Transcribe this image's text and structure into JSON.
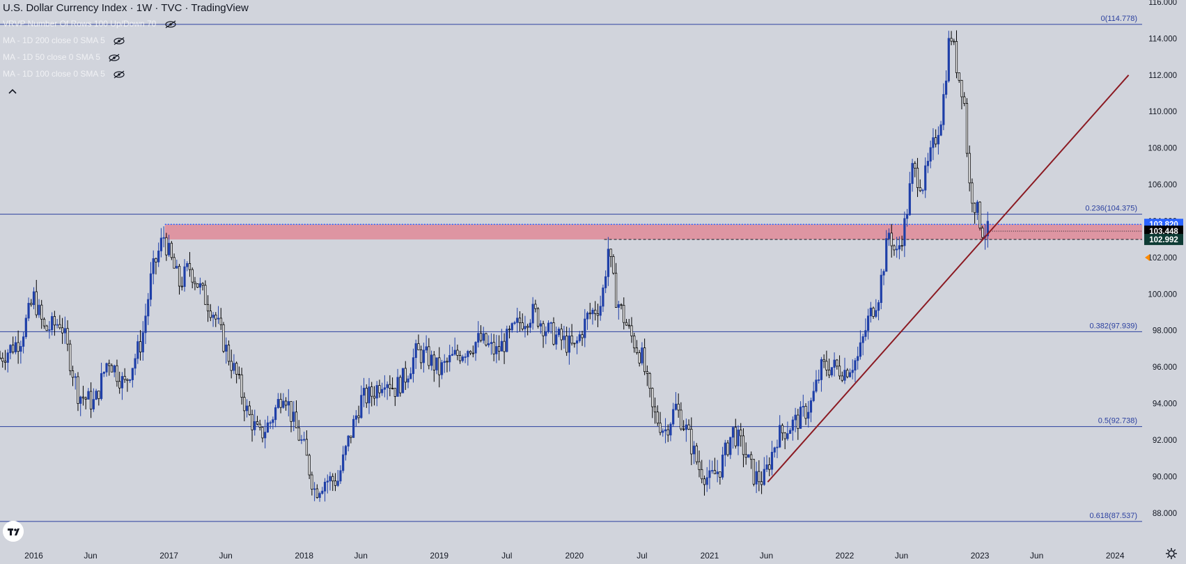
{
  "title": "U.S. Dollar Currency Index · 1W · TVC · TradingView",
  "indicators": [
    {
      "label": "VRVP Number Of Rows 100 Up/Down 70"
    },
    {
      "label": "MA - 1D 200 close 0 SMA 5"
    },
    {
      "label": "MA - 1D 50 close 0 SMA 5"
    },
    {
      "label": "MA - 1D 100 close 0 SMA 5"
    }
  ],
  "chart_data": {
    "type": "candlestick",
    "title": "U.S. Dollar Currency Index · 1W · TVC · TradingView",
    "xlabel": "",
    "ylabel": "",
    "ylim": [
      87.0,
      116.0
    ],
    "xlim": [
      2015.75,
      2024.2
    ],
    "grid": false,
    "y_ticks": [
      "88.000",
      "90.000",
      "92.000",
      "94.000",
      "96.000",
      "98.000",
      "100.000",
      "102.000",
      "104.000",
      "106.000",
      "108.000",
      "110.000",
      "112.000",
      "114.000",
      "116.000"
    ],
    "x_ticks": [
      {
        "label": "2016",
        "t": 2016.0
      },
      {
        "label": "Jun",
        "t": 2016.42
      },
      {
        "label": "2017",
        "t": 2017.0
      },
      {
        "label": "Jun",
        "t": 2017.42
      },
      {
        "label": "2018",
        "t": 2018.0
      },
      {
        "label": "Jun",
        "t": 2018.42
      },
      {
        "label": "2019",
        "t": 2019.0
      },
      {
        "label": "Jul",
        "t": 2019.5
      },
      {
        "label": "2020",
        "t": 2020.0
      },
      {
        "label": "Jul",
        "t": 2020.5
      },
      {
        "label": "2021",
        "t": 2021.0
      },
      {
        "label": "Jun",
        "t": 2021.42
      },
      {
        "label": "2022",
        "t": 2022.0
      },
      {
        "label": "Jun",
        "t": 2022.42
      },
      {
        "label": "2023",
        "t": 2023.0
      },
      {
        "label": "Jun",
        "t": 2023.42
      },
      {
        "label": "2024",
        "t": 2024.0
      }
    ],
    "price_keypoints": [
      [
        2015.75,
        96.5
      ],
      [
        2015.9,
        97.5
      ],
      [
        2016.0,
        99.8
      ],
      [
        2016.08,
        98.0
      ],
      [
        2016.2,
        98.5
      ],
      [
        2016.33,
        94.5
      ],
      [
        2016.45,
        94.0
      ],
      [
        2016.55,
        96.5
      ],
      [
        2016.67,
        95.0
      ],
      [
        2016.8,
        97.5
      ],
      [
        2016.87,
        101.0
      ],
      [
        2016.96,
        103.2
      ],
      [
        2017.0,
        102.2
      ],
      [
        2017.08,
        100.5
      ],
      [
        2017.15,
        101.5
      ],
      [
        2017.25,
        100.0
      ],
      [
        2017.33,
        99.0
      ],
      [
        2017.42,
        97.0
      ],
      [
        2017.5,
        95.5
      ],
      [
        2017.58,
        93.5
      ],
      [
        2017.67,
        92.2
      ],
      [
        2017.75,
        93.0
      ],
      [
        2017.85,
        94.8
      ],
      [
        2017.92,
        93.0
      ],
      [
        2018.0,
        91.5
      ],
      [
        2018.08,
        89.2
      ],
      [
        2018.15,
        89.8
      ],
      [
        2018.25,
        89.8
      ],
      [
        2018.33,
        92.0
      ],
      [
        2018.42,
        94.2
      ],
      [
        2018.5,
        94.5
      ],
      [
        2018.6,
        95.5
      ],
      [
        2018.67,
        94.8
      ],
      [
        2018.75,
        95.5
      ],
      [
        2018.83,
        96.8
      ],
      [
        2018.92,
        96.5
      ],
      [
        2019.0,
        95.8
      ],
      [
        2019.1,
        96.5
      ],
      [
        2019.2,
        97.0
      ],
      [
        2019.3,
        97.5
      ],
      [
        2019.42,
        96.8
      ],
      [
        2019.5,
        97.5
      ],
      [
        2019.6,
        98.5
      ],
      [
        2019.7,
        99.0
      ],
      [
        2019.8,
        98.0
      ],
      [
        2019.9,
        97.5
      ],
      [
        2020.0,
        97.0
      ],
      [
        2020.1,
        98.8
      ],
      [
        2020.2,
        99.5
      ],
      [
        2020.25,
        102.5
      ],
      [
        2020.3,
        100.0
      ],
      [
        2020.4,
        98.0
      ],
      [
        2020.5,
        96.5
      ],
      [
        2020.58,
        93.5
      ],
      [
        2020.67,
        92.5
      ],
      [
        2020.75,
        93.8
      ],
      [
        2020.83,
        92.5
      ],
      [
        2020.92,
        90.5
      ],
      [
        2021.0,
        89.8
      ],
      [
        2021.08,
        90.5
      ],
      [
        2021.17,
        92.5
      ],
      [
        2021.25,
        91.5
      ],
      [
        2021.33,
        90.0
      ],
      [
        2021.4,
        89.8
      ],
      [
        2021.5,
        92.2
      ],
      [
        2021.6,
        92.8
      ],
      [
        2021.67,
        93.2
      ],
      [
        2021.75,
        94.0
      ],
      [
        2021.83,
        96.0
      ],
      [
        2021.92,
        96.0
      ],
      [
        2022.0,
        95.8
      ],
      [
        2022.1,
        96.5
      ],
      [
        2022.17,
        98.5
      ],
      [
        2022.25,
        100.0
      ],
      [
        2022.33,
        103.5
      ],
      [
        2022.38,
        102.0
      ],
      [
        2022.45,
        104.0
      ],
      [
        2022.5,
        106.8
      ],
      [
        2022.58,
        106.0
      ],
      [
        2022.67,
        108.5
      ],
      [
        2022.72,
        110.0
      ],
      [
        2022.78,
        114.5
      ],
      [
        2022.84,
        112.0
      ],
      [
        2022.88,
        111.0
      ],
      [
        2022.92,
        106.0
      ],
      [
        2022.98,
        104.5
      ],
      [
        2023.02,
        103.5
      ],
      [
        2023.06,
        103.4
      ]
    ],
    "horizontal_levels": [
      {
        "value": 114.778,
        "label": "0(114.778)"
      },
      {
        "value": 104.375,
        "label": "0.236(104.375)"
      },
      {
        "value": 97.939,
        "label": "0.382(97.939)"
      },
      {
        "value": 92.738,
        "label": "0.5(92.738)"
      },
      {
        "value": 87.537,
        "label": "0.618(87.537)"
      }
    ],
    "zone": {
      "upper": 103.82,
      "lower": 102.992,
      "start": 2016.97,
      "color": "#e08a98"
    },
    "zone_mid_line": {
      "value": 102.992,
      "start": 2020.22,
      "style": "dashed"
    },
    "trendline": {
      "x1": 2021.43,
      "y1": 89.7,
      "x2": 2024.1,
      "y2": 112.0,
      "color": "#8b1a22"
    },
    "current_price": {
      "value": 103.448,
      "label": "103.448"
    },
    "price_badges": [
      {
        "value": 103.82,
        "label": "103.820",
        "bg": "#2962ff",
        "fg": "#ffffff"
      },
      {
        "value": 103.448,
        "label": "103.448",
        "bg": "#000000",
        "fg": "#ffffff"
      },
      {
        "value": 102.992,
        "label": "102.992",
        "bg": "#0e3b34",
        "fg": "#ffffff"
      }
    ],
    "marker": {
      "value": 102.0,
      "color": "#ff8a00"
    },
    "colors": {
      "up": "#1e3fa8",
      "down": "#000000",
      "level": "#2a3f9f",
      "background": "#d1d4dc"
    }
  }
}
